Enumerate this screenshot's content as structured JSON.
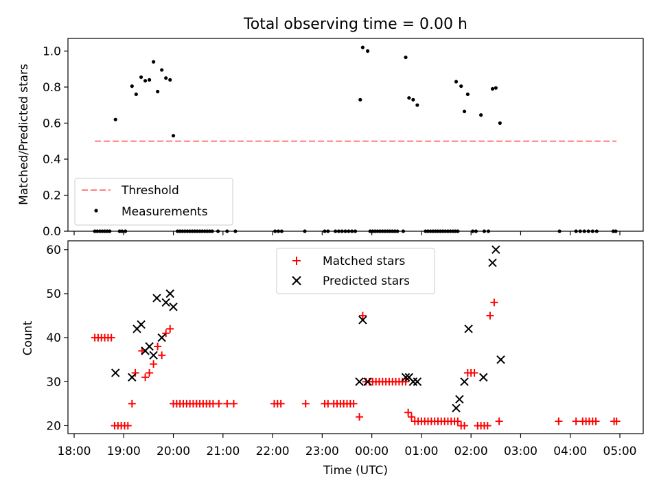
{
  "chart_data": [
    {
      "type": "scatter",
      "title": "Total observing time = 0.00 h",
      "xlabel": "",
      "ylabel": "Matched/Predicted stars",
      "xlim": [
        "18:00",
        "05:00"
      ],
      "ylim": [
        0,
        1.07
      ],
      "yticks": [
        "0.0",
        "0.2",
        "0.4",
        "0.6",
        "0.8",
        "1.0"
      ],
      "legend_position": "lower-left",
      "grid": false,
      "threshold": {
        "name": "Threshold",
        "value": 0.5,
        "x_start": "18:25",
        "x_end": "04:56",
        "color": "#ff7f7f",
        "style": "dashed"
      },
      "series": [
        {
          "name": "Measurements",
          "color": "#000000",
          "marker": "dot",
          "points": [
            [
              "18:25",
              0
            ],
            [
              "18:28",
              0
            ],
            [
              "18:31",
              0
            ],
            [
              "18:34",
              0
            ],
            [
              "18:37",
              0
            ],
            [
              "18:40",
              0
            ],
            [
              "18:43",
              0
            ],
            [
              "18:50",
              0.62
            ],
            [
              "18:55",
              0
            ],
            [
              "18:58",
              0
            ],
            [
              "19:02",
              0
            ],
            [
              "19:10",
              0.805
            ],
            [
              "19:15",
              0.76
            ],
            [
              "19:21",
              0.855
            ],
            [
              "19:26",
              0.835
            ],
            [
              "19:31",
              0.84
            ],
            [
              "19:36",
              0.94
            ],
            [
              "19:41",
              0.775
            ],
            [
              "19:46",
              0.895
            ],
            [
              "19:51",
              0.85
            ],
            [
              "19:56",
              0.84
            ],
            [
              "20:00",
              0.53
            ],
            [
              "20:05",
              0
            ],
            [
              "20:08",
              0
            ],
            [
              "20:11",
              0
            ],
            [
              "20:14",
              0
            ],
            [
              "20:17",
              0
            ],
            [
              "20:20",
              0
            ],
            [
              "20:23",
              0
            ],
            [
              "20:26",
              0
            ],
            [
              "20:29",
              0
            ],
            [
              "20:32",
              0
            ],
            [
              "20:35",
              0
            ],
            [
              "20:38",
              0
            ],
            [
              "20:41",
              0
            ],
            [
              "20:44",
              0
            ],
            [
              "20:47",
              0
            ],
            [
              "20:54",
              0
            ],
            [
              "21:05",
              0
            ],
            [
              "21:15",
              0
            ],
            [
              "22:03",
              0
            ],
            [
              "22:07",
              0
            ],
            [
              "22:11",
              0
            ],
            [
              "22:39",
              0
            ],
            [
              "23:03",
              0
            ],
            [
              "23:07",
              0
            ],
            [
              "23:16",
              0
            ],
            [
              "23:20",
              0
            ],
            [
              "23:24",
              0
            ],
            [
              "23:28",
              0
            ],
            [
              "23:32",
              0
            ],
            [
              "23:36",
              0
            ],
            [
              "23:40",
              0
            ],
            [
              "23:46",
              0.73
            ],
            [
              "23:49",
              1.02
            ],
            [
              "23:55",
              1.0
            ],
            [
              "23:58",
              0
            ],
            [
              "00:01",
              0
            ],
            [
              "00:04",
              0
            ],
            [
              "00:07",
              0
            ],
            [
              "00:10",
              0
            ],
            [
              "00:13",
              0
            ],
            [
              "00:16",
              0
            ],
            [
              "00:19",
              0
            ],
            [
              "00:22",
              0
            ],
            [
              "00:25",
              0
            ],
            [
              "00:28",
              0
            ],
            [
              "00:31",
              0
            ],
            [
              "00:38",
              0
            ],
            [
              "00:41",
              0.965
            ],
            [
              "00:45",
              0.74
            ],
            [
              "00:50",
              0.73
            ],
            [
              "00:55",
              0.7
            ],
            [
              "01:05",
              0
            ],
            [
              "01:08",
              0
            ],
            [
              "01:11",
              0
            ],
            [
              "01:14",
              0
            ],
            [
              "01:17",
              0
            ],
            [
              "01:20",
              0
            ],
            [
              "01:23",
              0
            ],
            [
              "01:26",
              0
            ],
            [
              "01:29",
              0
            ],
            [
              "01:32",
              0
            ],
            [
              "01:35",
              0
            ],
            [
              "01:38",
              0
            ],
            [
              "01:41",
              0
            ],
            [
              "01:44",
              0
            ],
            [
              "01:42",
              0.83
            ],
            [
              "01:48",
              0.805
            ],
            [
              "01:52",
              0.665
            ],
            [
              "01:56",
              0.76
            ],
            [
              "02:02",
              0
            ],
            [
              "02:06",
              0
            ],
            [
              "02:12",
              0.645
            ],
            [
              "02:16",
              0
            ],
            [
              "02:21",
              0
            ],
            [
              "02:26",
              0.79
            ],
            [
              "02:30",
              0.795
            ],
            [
              "02:35",
              0.6
            ],
            [
              "03:47",
              0
            ],
            [
              "04:07",
              0
            ],
            [
              "04:12",
              0
            ],
            [
              "04:17",
              0
            ],
            [
              "04:22",
              0
            ],
            [
              "04:27",
              0
            ],
            [
              "04:32",
              0
            ],
            [
              "04:52",
              0
            ],
            [
              "04:55",
              0
            ]
          ]
        }
      ]
    },
    {
      "type": "scatter",
      "title": "",
      "xlabel": "Time (UTC)",
      "ylabel": "Count",
      "xlim": [
        "18:00",
        "05:00"
      ],
      "ylim": [
        18.2,
        62
      ],
      "yticks": [
        "20",
        "30",
        "40",
        "50",
        "60"
      ],
      "xticks": [
        "18:00",
        "19:00",
        "20:00",
        "21:00",
        "22:00",
        "23:00",
        "00:00",
        "01:00",
        "02:00",
        "03:00",
        "04:00",
        "05:00"
      ],
      "legend_position": "upper-center",
      "grid": false,
      "series": [
        {
          "name": "Matched stars",
          "color": "#ff0000",
          "marker": "plus",
          "points": [
            [
              "18:25",
              40
            ],
            [
              "18:29",
              40
            ],
            [
              "18:33",
              40
            ],
            [
              "18:37",
              40
            ],
            [
              "18:41",
              40
            ],
            [
              "18:45",
              40
            ],
            [
              "18:49",
              20
            ],
            [
              "18:53",
              20
            ],
            [
              "18:57",
              20
            ],
            [
              "19:01",
              20
            ],
            [
              "19:05",
              20
            ],
            [
              "19:10",
              25
            ],
            [
              "19:14",
              32
            ],
            [
              "19:22",
              37
            ],
            [
              "19:26",
              31
            ],
            [
              "19:31",
              32
            ],
            [
              "19:36",
              34
            ],
            [
              "19:41",
              38
            ],
            [
              "19:46",
              36
            ],
            [
              "19:51",
              41
            ],
            [
              "19:56",
              42
            ],
            [
              "20:00",
              25
            ],
            [
              "20:04",
              25
            ],
            [
              "20:08",
              25
            ],
            [
              "20:12",
              25
            ],
            [
              "20:16",
              25
            ],
            [
              "20:20",
              25
            ],
            [
              "20:24",
              25
            ],
            [
              "20:28",
              25
            ],
            [
              "20:32",
              25
            ],
            [
              "20:36",
              25
            ],
            [
              "20:40",
              25
            ],
            [
              "20:44",
              25
            ],
            [
              "20:48",
              25
            ],
            [
              "20:55",
              25
            ],
            [
              "21:05",
              25
            ],
            [
              "21:13",
              25
            ],
            [
              "22:02",
              25
            ],
            [
              "22:06",
              25
            ],
            [
              "22:10",
              25
            ],
            [
              "22:40",
              25
            ],
            [
              "23:03",
              25
            ],
            [
              "23:07",
              25
            ],
            [
              "23:14",
              25
            ],
            [
              "23:18",
              25
            ],
            [
              "23:22",
              25
            ],
            [
              "23:26",
              25
            ],
            [
              "23:30",
              25
            ],
            [
              "23:34",
              25
            ],
            [
              "23:38",
              25
            ],
            [
              "23:45",
              22
            ],
            [
              "23:49",
              45
            ],
            [
              "23:53",
              30
            ],
            [
              "23:57",
              30
            ],
            [
              "00:01",
              30
            ],
            [
              "00:05",
              30
            ],
            [
              "00:09",
              30
            ],
            [
              "00:13",
              30
            ],
            [
              "00:17",
              30
            ],
            [
              "00:21",
              30
            ],
            [
              "00:25",
              30
            ],
            [
              "00:29",
              30
            ],
            [
              "00:33",
              30
            ],
            [
              "00:37",
              30
            ],
            [
              "00:41",
              30
            ],
            [
              "00:44",
              23
            ],
            [
              "00:48",
              22
            ],
            [
              "00:52",
              21
            ],
            [
              "00:56",
              21
            ],
            [
              "01:00",
              21
            ],
            [
              "01:04",
              21
            ],
            [
              "01:08",
              21
            ],
            [
              "01:12",
              21
            ],
            [
              "01:16",
              21
            ],
            [
              "01:20",
              21
            ],
            [
              "01:24",
              21
            ],
            [
              "01:28",
              21
            ],
            [
              "01:32",
              21
            ],
            [
              "01:36",
              21
            ],
            [
              "01:40",
              21
            ],
            [
              "01:44",
              21
            ],
            [
              "01:48",
              20
            ],
            [
              "01:52",
              20
            ],
            [
              "01:56",
              32
            ],
            [
              "02:00",
              32
            ],
            [
              "02:04",
              32
            ],
            [
              "02:08",
              20
            ],
            [
              "02:12",
              20
            ],
            [
              "02:16",
              20
            ],
            [
              "02:20",
              20
            ],
            [
              "02:23",
              45
            ],
            [
              "02:28",
              48
            ],
            [
              "02:34",
              21
            ],
            [
              "03:46",
              21
            ],
            [
              "04:07",
              21
            ],
            [
              "04:15",
              21
            ],
            [
              "04:19",
              21
            ],
            [
              "04:23",
              21
            ],
            [
              "04:27",
              21
            ],
            [
              "04:31",
              21
            ],
            [
              "04:53",
              21
            ],
            [
              "04:56",
              21
            ]
          ]
        },
        {
          "name": "Predicted stars",
          "color": "#000000",
          "marker": "x",
          "points": [
            [
              "18:50",
              32
            ],
            [
              "19:10",
              31
            ],
            [
              "19:16",
              42
            ],
            [
              "19:21",
              43
            ],
            [
              "19:26",
              37
            ],
            [
              "19:31",
              38
            ],
            [
              "19:36",
              36
            ],
            [
              "19:40",
              49
            ],
            [
              "19:46",
              40
            ],
            [
              "19:51",
              48
            ],
            [
              "19:56",
              50
            ],
            [
              "20:00",
              47
            ],
            [
              "23:45",
              30
            ],
            [
              "23:49",
              44
            ],
            [
              "23:55",
              30
            ],
            [
              "00:41",
              31
            ],
            [
              "00:45",
              31
            ],
            [
              "00:50",
              30
            ],
            [
              "00:55",
              30
            ],
            [
              "01:42",
              24
            ],
            [
              "01:46",
              26
            ],
            [
              "01:52",
              30
            ],
            [
              "01:57",
              42
            ],
            [
              "02:15",
              31
            ],
            [
              "02:26",
              57
            ],
            [
              "02:30",
              60
            ],
            [
              "02:36",
              35
            ]
          ]
        }
      ]
    }
  ]
}
